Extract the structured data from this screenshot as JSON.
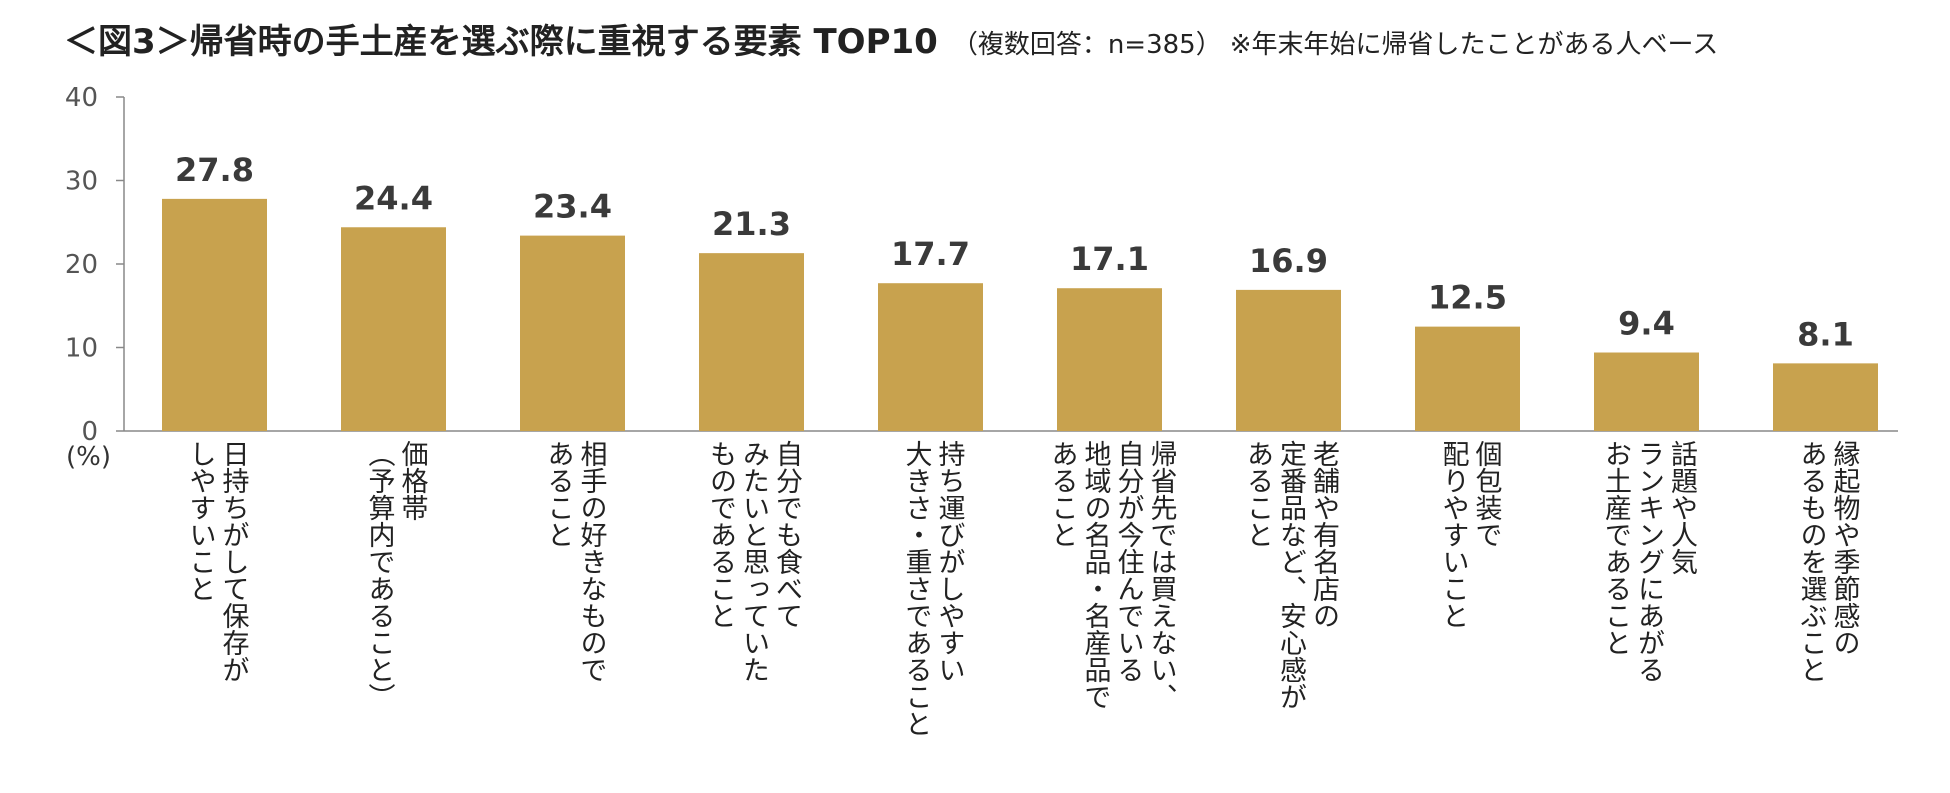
{
  "title": {
    "main": "＜図3＞帰省時の手土産を選ぶ際に重視する要素 TOP10",
    "sub": "（複数回答：n=385）",
    "note": "※年末年始に帰省したことがある人ベース"
  },
  "chart_data": {
    "type": "bar",
    "unit": "(%)",
    "ylim": [
      0,
      40
    ],
    "yticks": [
      "0",
      "10",
      "20",
      "30",
      "40"
    ],
    "bar_color": "#C8A24E",
    "categories": [
      "日持ちがして保存が\nしやすいこと",
      "価格帯\n（予算内であること）",
      "相手の好きなもので\nあること",
      "自分でも食べて\nみたいと思っていた\nものであること",
      "持ち運びがしやすい\n大きさ・重さであること",
      "帰省先では買えない、\n自分が今住んでいる\n地域の名品・名産品で\nあること",
      "老舗や有名店の\n定番品など、安心感が\nあること",
      "個包装で\n配りやすいこと",
      "話題や人気\nランキングにあがる\nお土産であること",
      "縁起物や季節感の\nあるものを選ぶこと"
    ],
    "values": [
      27.8,
      24.4,
      23.4,
      21.3,
      17.7,
      17.1,
      16.9,
      12.5,
      9.4,
      8.1
    ],
    "value_labels": [
      "27.8",
      "24.4",
      "23.4",
      "21.3",
      "17.7",
      "17.1",
      "16.9",
      "12.5",
      "9.4",
      "8.1"
    ]
  }
}
